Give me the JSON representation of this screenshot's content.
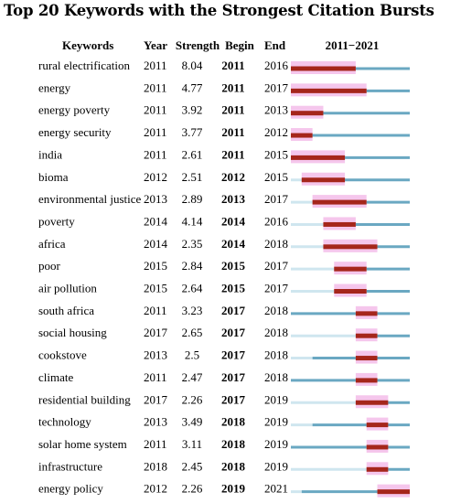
{
  "chart_data": {
    "type": "table",
    "title": "Top 20 Keywords with the Strongest Citation Bursts",
    "columns": [
      "Keywords",
      "Year",
      "Strength",
      "Begin",
      "End",
      "2011−2021"
    ],
    "range": [
      2011,
      2021
    ],
    "rows": [
      {
        "keyword": "rural electrification",
        "year": "2011",
        "strength": "8.04",
        "begin": "2011",
        "end": "2016"
      },
      {
        "keyword": "energy",
        "year": "2011",
        "strength": "4.77",
        "begin": "2011",
        "end": "2017"
      },
      {
        "keyword": "energy poverty",
        "year": "2011",
        "strength": "3.92",
        "begin": "2011",
        "end": "2013"
      },
      {
        "keyword": "energy security",
        "year": "2011",
        "strength": "3.77",
        "begin": "2011",
        "end": "2012"
      },
      {
        "keyword": "india",
        "year": "2011",
        "strength": "2.61",
        "begin": "2011",
        "end": "2015"
      },
      {
        "keyword": "bioma",
        "year": "2012",
        "strength": "2.51",
        "begin": "2012",
        "end": "2015"
      },
      {
        "keyword": "environmental justice",
        "year": "2013",
        "strength": "2.89",
        "begin": "2013",
        "end": "2017"
      },
      {
        "keyword": "poverty",
        "year": "2014",
        "strength": "4.14",
        "begin": "2014",
        "end": "2016"
      },
      {
        "keyword": "africa",
        "year": "2014",
        "strength": "2.35",
        "begin": "2014",
        "end": "2018"
      },
      {
        "keyword": "poor",
        "year": "2015",
        "strength": "2.84",
        "begin": "2015",
        "end": "2017"
      },
      {
        "keyword": "air pollution",
        "year": "2015",
        "strength": "2.64",
        "begin": "2015",
        "end": "2017"
      },
      {
        "keyword": "south africa",
        "year": "2011",
        "strength": "3.23",
        "begin": "2017",
        "end": "2018"
      },
      {
        "keyword": "social housing",
        "year": "2017",
        "strength": "2.65",
        "begin": "2017",
        "end": "2018"
      },
      {
        "keyword": "cookstove",
        "year": "2013",
        "strength": "2.5",
        "begin": "2017",
        "end": "2018"
      },
      {
        "keyword": "climate",
        "year": "2011",
        "strength": "2.47",
        "begin": "2017",
        "end": "2018"
      },
      {
        "keyword": "residential building",
        "year": "2017",
        "strength": "2.26",
        "begin": "2017",
        "end": "2019"
      },
      {
        "keyword": "technology",
        "year": "2013",
        "strength": "3.49",
        "begin": "2018",
        "end": "2019"
      },
      {
        "keyword": "solar home system",
        "year": "2011",
        "strength": "3.11",
        "begin": "2018",
        "end": "2019"
      },
      {
        "keyword": "infrastructure",
        "year": "2018",
        "strength": "2.45",
        "begin": "2018",
        "end": "2019"
      },
      {
        "keyword": "energy policy",
        "year": "2012",
        "strength": "2.26",
        "begin": "2019",
        "end": "2021"
      }
    ],
    "colors": {
      "burst": "#a5261b",
      "highlight": "#f5c6ec",
      "active": "#6aa8c2",
      "inactive": "#cfe6ef"
    }
  }
}
